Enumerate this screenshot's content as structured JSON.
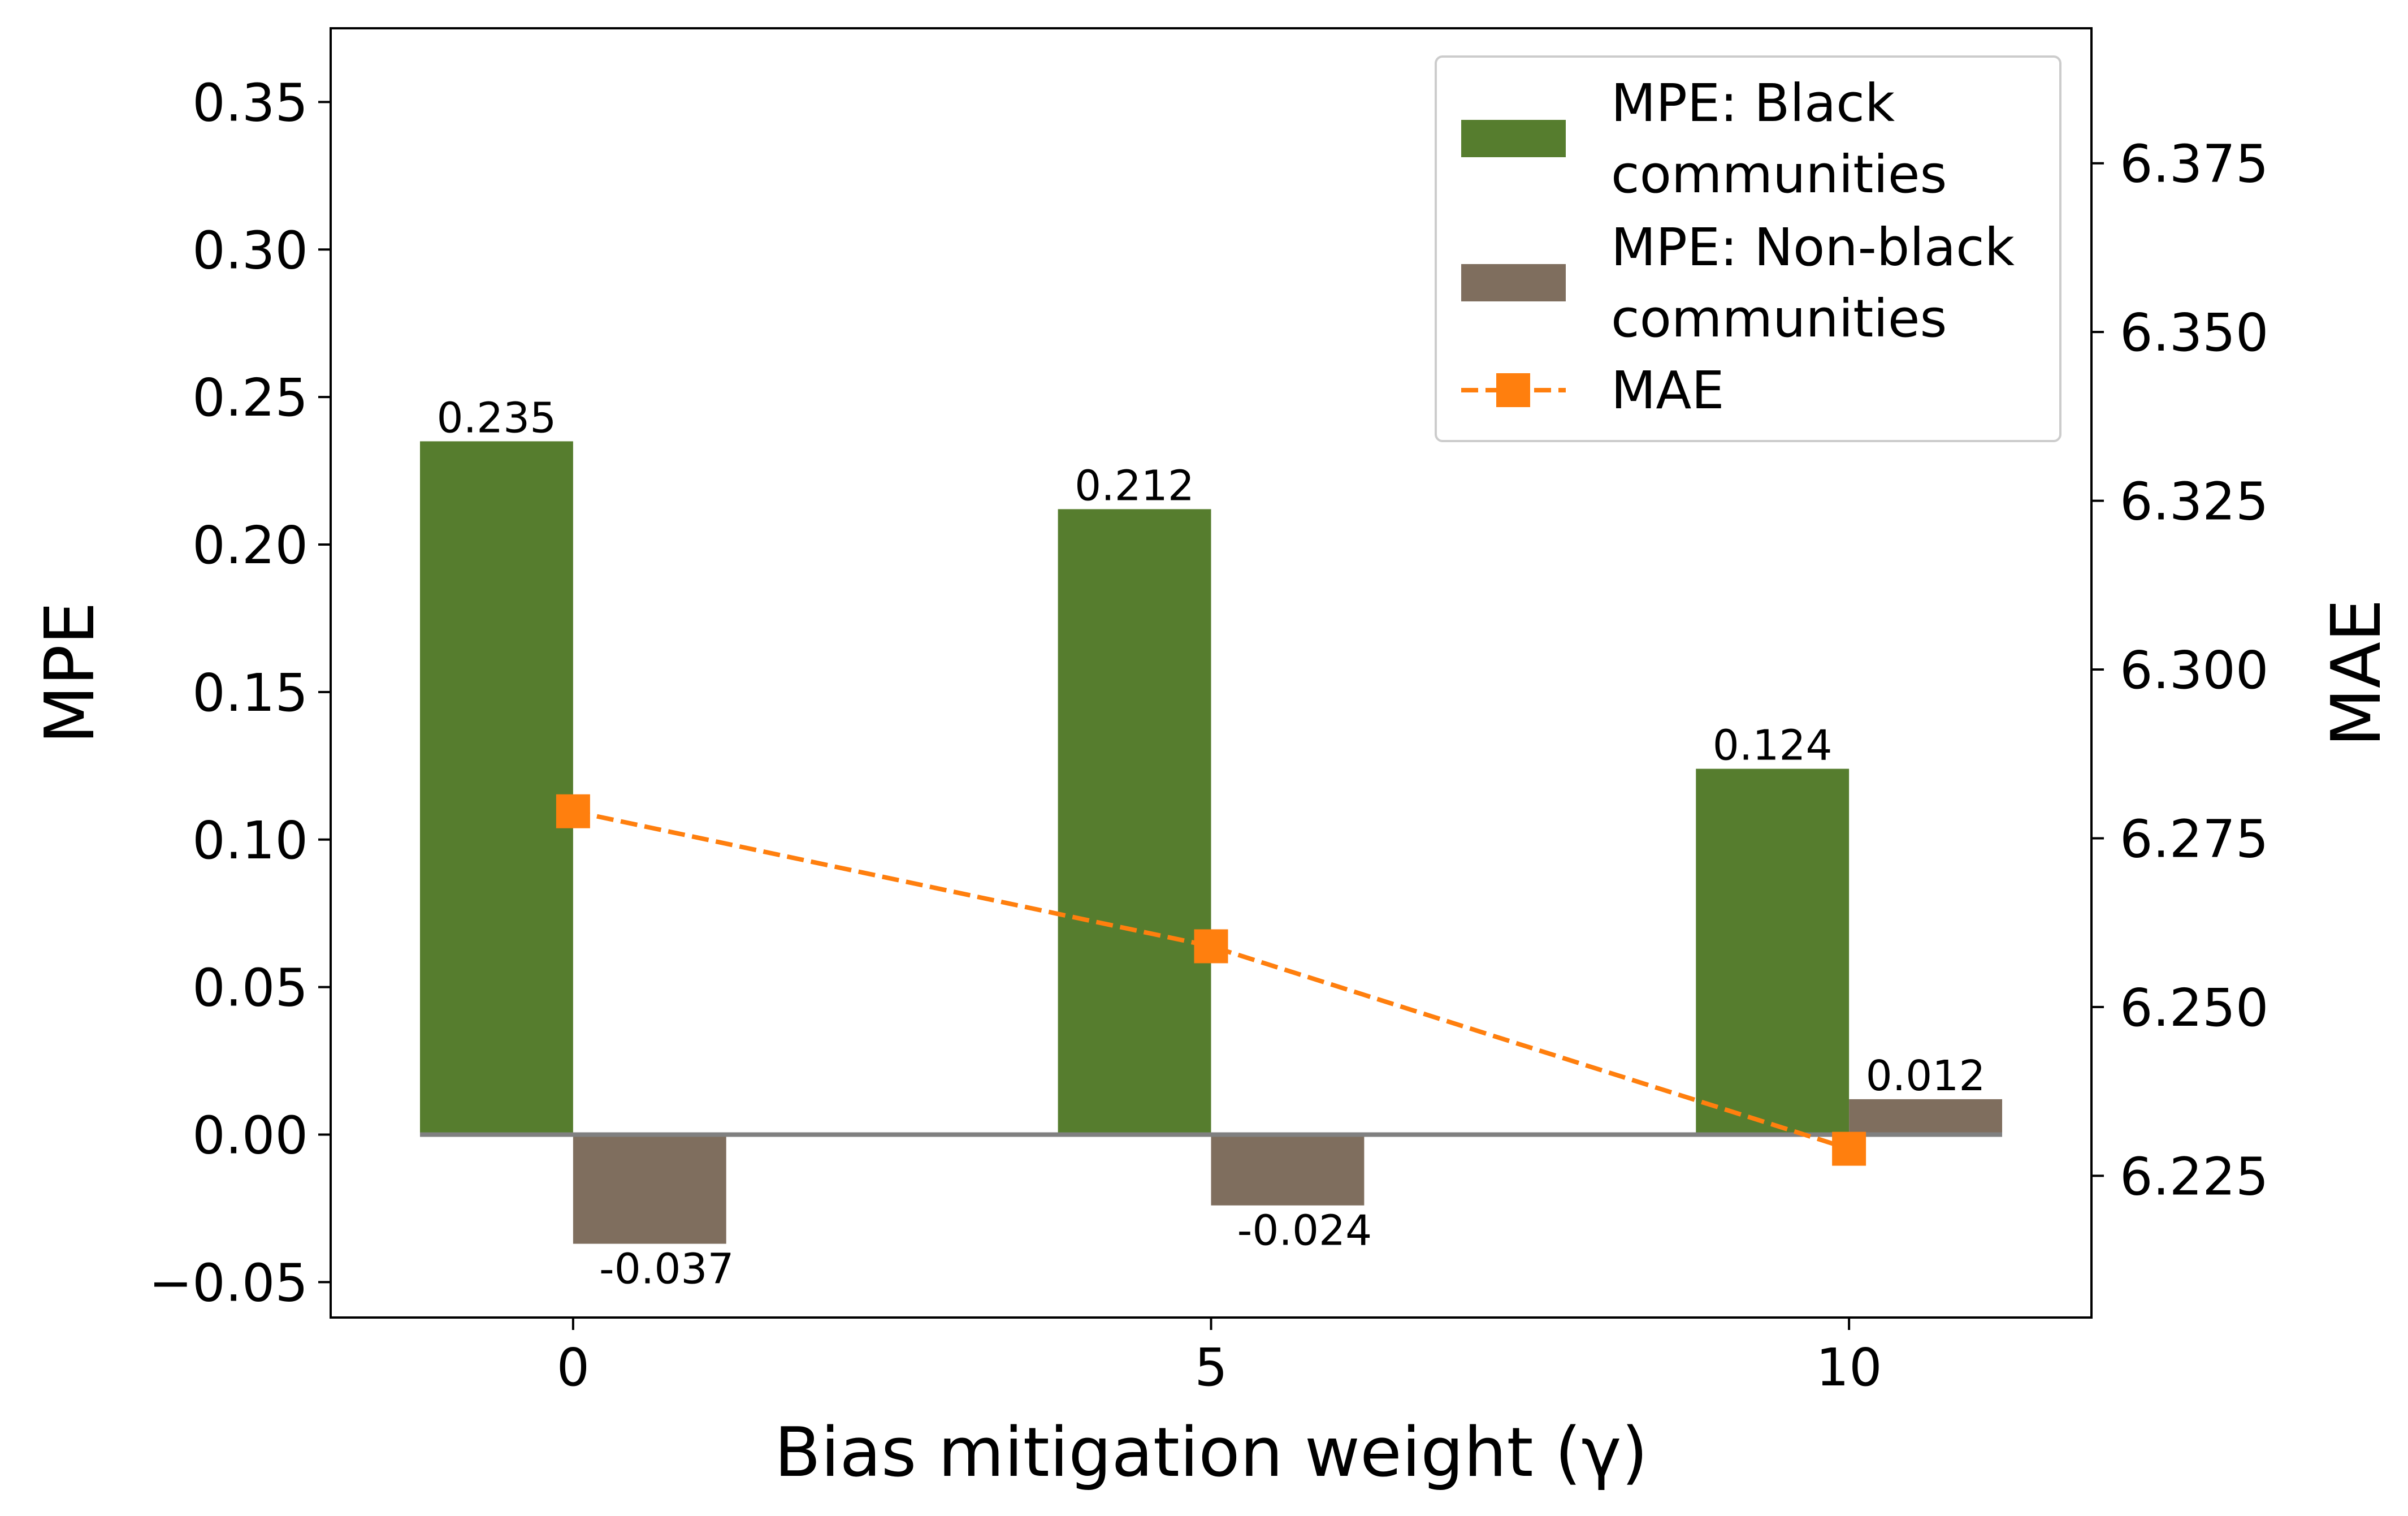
{
  "chart_data": {
    "type": "bar",
    "xlabel": "Bias mitigation weight (γ)",
    "ylabel": "MPE",
    "y2label": "MAE",
    "categories": [
      "0",
      "5",
      "10"
    ],
    "x": [
      0,
      5,
      10
    ],
    "ylim": [
      -0.062,
      0.375
    ],
    "y2lim": [
      6.204,
      6.395
    ],
    "yticks": [
      "−0.05",
      "0.00",
      "0.05",
      "0.10",
      "0.15",
      "0.20",
      "0.25",
      "0.30",
      "0.35"
    ],
    "ytick_values": [
      -0.05,
      0.0,
      0.05,
      0.1,
      0.15,
      0.2,
      0.25,
      0.3,
      0.35
    ],
    "y2ticks": [
      "6.225",
      "6.250",
      "6.275",
      "6.300",
      "6.325",
      "6.350",
      "6.375"
    ],
    "y2tick_values": [
      6.225,
      6.25,
      6.275,
      6.3,
      6.325,
      6.35,
      6.375
    ],
    "series": [
      {
        "name": "MPE: Black communities",
        "legend_lines": [
          "MPE: Black",
          "communities"
        ],
        "kind": "bar",
        "color": "#567d2e",
        "values": [
          0.235,
          0.212,
          0.124
        ],
        "labels": [
          "0.235",
          "0.212",
          "0.124"
        ]
      },
      {
        "name": "MPE: Non-black communities",
        "legend_lines": [
          "MPE: Non-black",
          "communities"
        ],
        "kind": "bar",
        "color": "#7f6e5e",
        "values": [
          -0.037,
          -0.024,
          0.012
        ],
        "labels": [
          "-0.037",
          "-0.024",
          "0.012"
        ]
      },
      {
        "name": "MAE",
        "legend_lines": [
          "MAE"
        ],
        "kind": "line",
        "axis": "right",
        "color": "#ff7f0e",
        "linestyle": "dashed",
        "marker": "square",
        "values": [
          6.279,
          6.259,
          6.229
        ]
      }
    ],
    "legend_position": "top-right",
    "grid": false
  }
}
